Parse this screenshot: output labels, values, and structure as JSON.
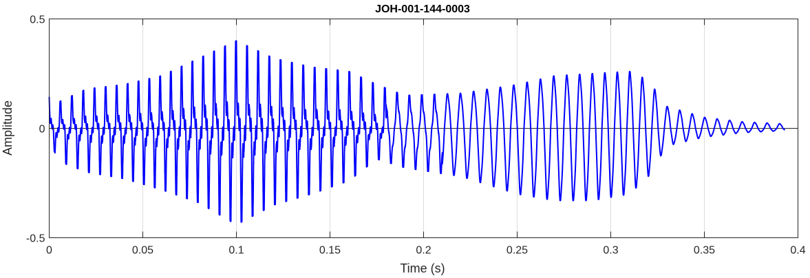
{
  "chart_data": {
    "type": "line",
    "title": "JOH-001-144-0003",
    "xlabel": "Time (s)",
    "ylabel": "Amplitude",
    "xlim": [
      0,
      0.4
    ],
    "ylim": [
      -0.5,
      0.5
    ],
    "xticks": [
      0,
      0.05,
      0.1,
      0.15,
      0.2,
      0.25,
      0.3,
      0.35,
      0.4
    ],
    "xtick_labels": [
      "0",
      "0.05",
      "0.1",
      "0.15",
      "0.2",
      "0.25",
      "0.3",
      "0.35",
      "0.4"
    ],
    "yticks": [
      -0.5,
      0,
      0.5
    ],
    "ytick_labels": [
      "-0.5",
      "0",
      "0.5"
    ],
    "grid": true,
    "series": [
      {
        "color": "#0000ff",
        "duration": 0.393,
        "envelope_time": [
          0,
          0.005,
          0.02,
          0.04,
          0.06,
          0.08,
          0.1,
          0.12,
          0.14,
          0.16,
          0.175,
          0.19,
          0.22,
          0.25,
          0.27,
          0.29,
          0.31,
          0.32,
          0.33,
          0.35,
          0.37,
          0.393
        ],
        "envelope_max": [
          0.15,
          0.12,
          0.18,
          0.2,
          0.24,
          0.32,
          0.4,
          0.32,
          0.28,
          0.26,
          0.2,
          0.15,
          0.16,
          0.2,
          0.24,
          0.25,
          0.26,
          0.22,
          0.1,
          0.05,
          0.03,
          0.02
        ],
        "envelope_min": [
          -0.05,
          -0.15,
          -0.2,
          -0.23,
          -0.28,
          -0.34,
          -0.44,
          -0.35,
          -0.3,
          -0.24,
          -0.14,
          -0.18,
          -0.22,
          -0.3,
          -0.33,
          -0.33,
          -0.3,
          -0.22,
          -0.08,
          -0.04,
          -0.02,
          -0.01
        ],
        "f0_hz": [
          160,
          170,
          175,
          170,
          165,
          160,
          150,
          140,
          140,
          150,
          150,
          150,
          150
        ]
      }
    ]
  }
}
